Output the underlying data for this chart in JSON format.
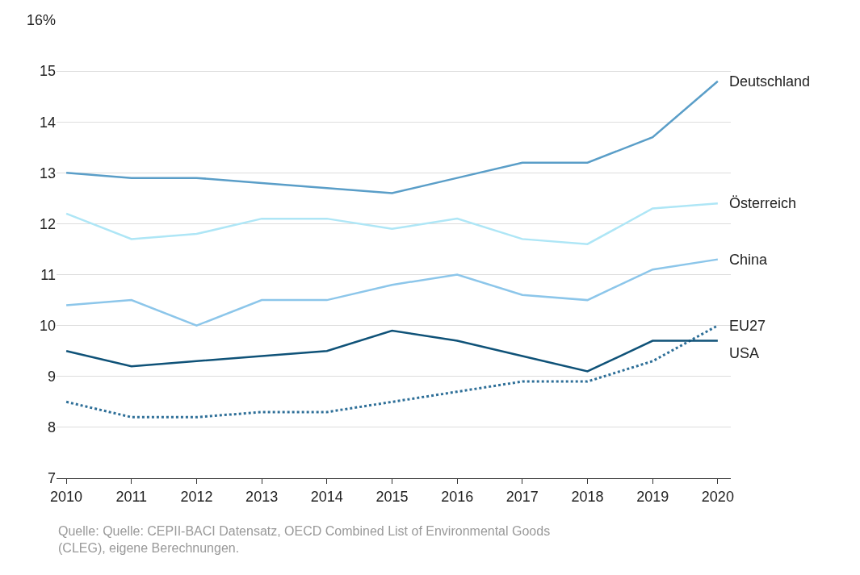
{
  "chart_data": {
    "type": "line",
    "x": [
      2010,
      2011,
      2012,
      2013,
      2014,
      2015,
      2016,
      2017,
      2018,
      2019,
      2020
    ],
    "series": [
      {
        "name": "Deutschland",
        "color": "#5a9ec8",
        "values": [
          13.0,
          12.9,
          12.9,
          12.8,
          12.7,
          12.6,
          12.9,
          13.2,
          13.2,
          13.7,
          14.8
        ]
      },
      {
        "name": "Österreich",
        "color": "#aee6f6",
        "values": [
          12.2,
          11.7,
          11.8,
          12.1,
          12.1,
          11.9,
          12.1,
          11.7,
          11.6,
          12.3,
          12.4
        ]
      },
      {
        "name": "China",
        "color": "#8cc6ea",
        "values": [
          10.4,
          10.5,
          10.0,
          10.5,
          10.5,
          10.8,
          11.0,
          10.6,
          10.5,
          11.1,
          11.3
        ]
      },
      {
        "name": "EU27",
        "color": "#2e6f98",
        "line_style": "dotted",
        "values": [
          8.5,
          8.2,
          8.2,
          8.3,
          8.3,
          8.5,
          8.7,
          8.9,
          8.9,
          9.3,
          10.0
        ]
      },
      {
        "name": "USA",
        "color": "#0f5278",
        "values": [
          9.5,
          9.2,
          9.3,
          9.4,
          9.5,
          9.9,
          9.7,
          9.4,
          9.1,
          9.7,
          9.7
        ]
      }
    ],
    "xlim": [
      2009.85,
      2020.2
    ],
    "xticks": [
      2010,
      2011,
      2012,
      2013,
      2014,
      2015,
      2016,
      2017,
      2018,
      2019,
      2020
    ],
    "ylim": [
      7,
      16
    ],
    "yticks": [
      7,
      8,
      9,
      10,
      11,
      12,
      13,
      14,
      15,
      {
        "value": 16,
        "label": "16%"
      }
    ],
    "grid": "y",
    "legend": false,
    "marker": "none",
    "line_style": "solid",
    "annotations": [
      "Quelle: Quelle: CEPII-BACI Datensatz, OECD Combined List of Environmental Goods (CLEG), eigene Berechnungen."
    ]
  }
}
